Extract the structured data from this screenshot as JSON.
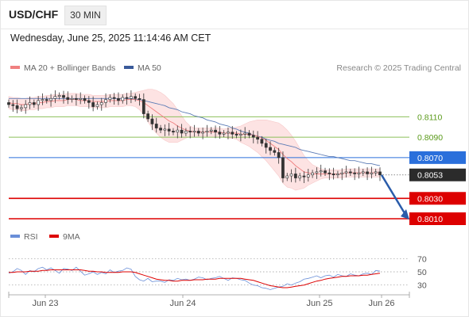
{
  "header": {
    "pair": "USD/CHF",
    "timeframe": "30 MIN",
    "datetime": "Wednesday, June 25, 2025 11:14:46 AM CET"
  },
  "legend": {
    "ma20": "MA 20 + Bollinger Bands",
    "ma50": "MA 50",
    "copyright": "Research © 2025 Trading Central",
    "rsi": "RSI",
    "ma9": "9MA"
  },
  "colors": {
    "ma20": "#f08080",
    "band": "#fde3e3",
    "ma50": "#5b7bb5",
    "candle": "#333333",
    "support": "#dd0000",
    "pivot": "#2a6fdb",
    "resistance": "#8bbf5a",
    "rsi": "#6a8fd8",
    "rsi_ma": "#dd0000"
  },
  "chart_data": [
    {
      "type": "candlestick",
      "title": "USD/CHF 30 MIN",
      "x_ticks": [
        "Jun 23",
        "Jun 24",
        "Jun 25",
        "Jun 26"
      ],
      "ylim": [
        0.8003,
        0.8143
      ],
      "last_price": "0.8053",
      "levels": [
        {
          "value": "0.8110",
          "kind": "resistance"
        },
        {
          "value": "0.8090",
          "kind": "resistance"
        },
        {
          "value": "0.8070",
          "kind": "pivot"
        },
        {
          "value": "0.8030",
          "kind": "support"
        },
        {
          "value": "0.8010",
          "kind": "support"
        }
      ],
      "close": [
        0.8122,
        0.8121,
        0.8118,
        0.8119,
        0.8122,
        0.8124,
        0.8122,
        0.8126,
        0.8127,
        0.8126,
        0.8128,
        0.813,
        0.8131,
        0.8129,
        0.8127,
        0.8128,
        0.8127,
        0.8128,
        0.8126,
        0.8124,
        0.812,
        0.8122,
        0.8124,
        0.8127,
        0.8129,
        0.8128,
        0.8126,
        0.8129,
        0.8128,
        0.813,
        0.8128,
        0.8127,
        0.8113,
        0.8108,
        0.8103,
        0.8099,
        0.8097,
        0.8098,
        0.8096,
        0.8095,
        0.8097,
        0.8094,
        0.8096,
        0.8095,
        0.8096,
        0.8094,
        0.8095,
        0.8096,
        0.8097,
        0.8095,
        0.8093,
        0.8094,
        0.8095,
        0.8093,
        0.8092,
        0.8093,
        0.8094,
        0.8092,
        0.809,
        0.8088,
        0.8084,
        0.808,
        0.8077,
        0.8075,
        0.807,
        0.805,
        0.8052,
        0.8054,
        0.805,
        0.8052,
        0.8051,
        0.8053,
        0.8055,
        0.8056,
        0.8057,
        0.8055,
        0.8054,
        0.8053,
        0.8054,
        0.8055,
        0.8056,
        0.8055,
        0.8054,
        0.8055,
        0.8056,
        0.8054,
        0.8055,
        0.8056,
        0.8053
      ],
      "ma20": [
        0.8124,
        0.8123,
        0.8123,
        0.8122,
        0.8122,
        0.8123,
        0.8123,
        0.8124,
        0.8124,
        0.8125,
        0.8125,
        0.8126,
        0.8126,
        0.8126,
        0.8127,
        0.8127,
        0.8127,
        0.8126,
        0.8126,
        0.8126,
        0.8125,
        0.8125,
        0.8125,
        0.8125,
        0.8126,
        0.8126,
        0.8126,
        0.8126,
        0.8127,
        0.8127,
        0.8127,
        0.8126,
        0.8124,
        0.8121,
        0.8118,
        0.8115,
        0.8112,
        0.8109,
        0.8106,
        0.8104,
        0.8101,
        0.8099,
        0.8097,
        0.8096,
        0.8095,
        0.8095,
        0.8095,
        0.8095,
        0.8095,
        0.8095,
        0.8095,
        0.8094,
        0.8094,
        0.8094,
        0.8094,
        0.8093,
        0.8093,
        0.8093,
        0.8092,
        0.8091,
        0.8089,
        0.8087,
        0.8084,
        0.8081,
        0.8078,
        0.8073,
        0.8069,
        0.8066,
        0.8062,
        0.8059,
        0.8056,
        0.8055,
        0.8054,
        0.8054,
        0.8054,
        0.8054,
        0.8054,
        0.8054,
        0.8054,
        0.8054,
        0.8055,
        0.8055,
        0.8055,
        0.8055,
        0.8055,
        0.8055,
        0.8055,
        0.8055,
        0.8055
      ],
      "band_width": [
        0.0006,
        0.0006,
        0.0006,
        0.0006,
        0.0006,
        0.0006,
        0.0006,
        0.0006,
        0.0006,
        0.0006,
        0.0006,
        0.0006,
        0.0006,
        0.0006,
        0.0006,
        0.0006,
        0.0006,
        0.0006,
        0.0006,
        0.0006,
        0.0006,
        0.0006,
        0.0006,
        0.0006,
        0.0006,
        0.0006,
        0.0006,
        0.0006,
        0.0006,
        0.0006,
        0.0007,
        0.0009,
        0.0012,
        0.0016,
        0.0019,
        0.0021,
        0.0022,
        0.0022,
        0.0021,
        0.0019,
        0.0016,
        0.0012,
        0.0008,
        0.0005,
        0.0004,
        0.0004,
        0.0004,
        0.0004,
        0.0004,
        0.0004,
        0.0004,
        0.0004,
        0.0005,
        0.0005,
        0.0006,
        0.0008,
        0.001,
        0.0012,
        0.0014,
        0.0016,
        0.0018,
        0.002,
        0.0022,
        0.0024,
        0.0026,
        0.0028,
        0.0028,
        0.0026,
        0.0024,
        0.002,
        0.0016,
        0.0012,
        0.0009,
        0.0007,
        0.0005,
        0.0004,
        0.0004,
        0.0004,
        0.0004,
        0.0004,
        0.0004,
        0.0004,
        0.0004,
        0.0004,
        0.0004,
        0.0004,
        0.0004,
        0.0004,
        0.0004
      ],
      "ma50": [
        0.8128,
        0.8128,
        0.8128,
        0.8128,
        0.8128,
        0.8128,
        0.8128,
        0.8128,
        0.8128,
        0.8128,
        0.8128,
        0.8128,
        0.8128,
        0.8128,
        0.8128,
        0.8128,
        0.8128,
        0.8128,
        0.8128,
        0.8128,
        0.8128,
        0.8128,
        0.8128,
        0.8128,
        0.8128,
        0.8128,
        0.8128,
        0.8128,
        0.8128,
        0.8128,
        0.8127,
        0.8127,
        0.8126,
        0.8125,
        0.8124,
        0.8123,
        0.8122,
        0.8121,
        0.8119,
        0.8118,
        0.8117,
        0.8115,
        0.8114,
        0.8113,
        0.8111,
        0.811,
        0.8109,
        0.8107,
        0.8106,
        0.8105,
        0.8103,
        0.8102,
        0.8101,
        0.8099,
        0.8098,
        0.8096,
        0.8095,
        0.8094,
        0.8092,
        0.8091,
        0.809,
        0.8088,
        0.8087,
        0.8086,
        0.8084,
        0.8083,
        0.8082,
        0.8081,
        0.808,
        0.8078,
        0.8077,
        0.8076,
        0.8075,
        0.8074,
        0.8073,
        0.8072,
        0.8071,
        0.8071,
        0.807,
        0.8069,
        0.8068,
        0.8067,
        0.8067,
        0.8066,
        0.8065,
        0.8064,
        0.8064,
        0.8063,
        0.8062
      ],
      "projection": {
        "from": 0.8053,
        "to": 0.801
      }
    },
    {
      "type": "line",
      "title": "RSI",
      "ylim": [
        20,
        80
      ],
      "y_ticks": [
        "70",
        "50",
        "30"
      ],
      "series": [
        {
          "name": "RSI",
          "values": [
            48,
            50,
            55,
            52,
            46,
            52,
            50,
            55,
            57,
            53,
            56,
            52,
            48,
            55,
            54,
            52,
            57,
            51,
            45,
            47,
            50,
            46,
            49,
            47,
            53,
            49,
            51,
            52,
            56,
            54,
            43,
            38,
            36,
            40,
            35,
            36,
            36,
            34,
            38,
            37,
            40,
            38,
            39,
            37,
            39,
            42,
            41,
            38,
            40,
            41,
            43,
            40,
            37,
            41,
            40,
            38,
            37,
            33,
            30,
            29,
            26,
            25,
            23,
            25,
            27,
            28,
            32,
            30,
            33,
            35,
            39,
            40,
            42,
            44,
            41,
            44,
            45,
            42,
            46,
            44,
            43,
            47,
            45,
            44,
            47,
            48,
            46,
            52,
            51
          ]
        },
        {
          "name": "9MA",
          "values": [
            49,
            49,
            50,
            50,
            50,
            51,
            51,
            51,
            52,
            52,
            53,
            53,
            53,
            53,
            53,
            53,
            53,
            53,
            52,
            51,
            51,
            50,
            50,
            49,
            49,
            49,
            49,
            50,
            50,
            50,
            49,
            47,
            45,
            43,
            41,
            39,
            38,
            37,
            37,
            36,
            36,
            37,
            37,
            37,
            38,
            38,
            38,
            39,
            39,
            39,
            40,
            40,
            40,
            40,
            40,
            40,
            39,
            38,
            37,
            35,
            33,
            31,
            29,
            28,
            27,
            26,
            26,
            27,
            28,
            29,
            30,
            32,
            34,
            36,
            37,
            39,
            40,
            41,
            42,
            43,
            43,
            44,
            44,
            44,
            45,
            45,
            46,
            47,
            48
          ]
        }
      ]
    }
  ]
}
